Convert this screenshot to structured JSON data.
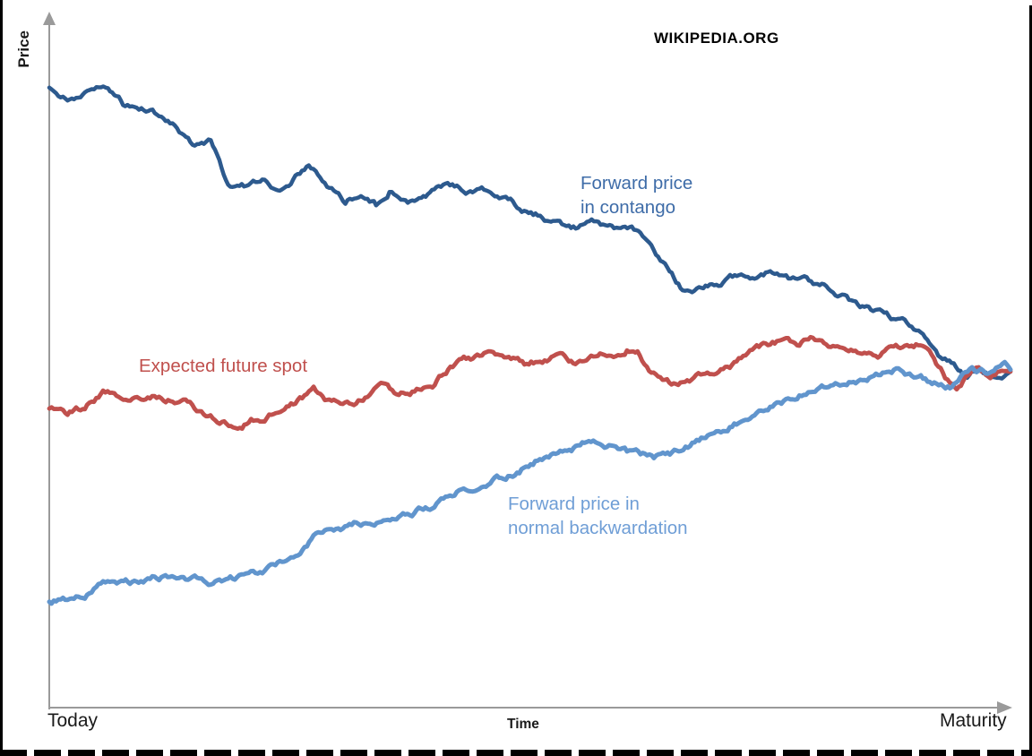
{
  "watermark": "WIKIPEDIA.ORG",
  "labels": {
    "contango": {
      "line1": "Forward price",
      "line2": "in contango"
    },
    "spot": {
      "line1": "Expected future spot"
    },
    "backwardation": {
      "line1": "Forward price in",
      "line2": "normal backwardation"
    }
  },
  "colors": {
    "contango_line": "#2d5a8e",
    "contango_label": "#3e6ca8",
    "spot_line": "#c0504d",
    "backwardation_line": "#6195cd",
    "backwardation_label": "#6f9ed6",
    "axis": "#9a9a9a",
    "text": "#1a1a1a"
  },
  "chart_data": {
    "type": "line",
    "title": "",
    "xlabel": "Time",
    "ylabel": "Price",
    "x_start_label": "Today",
    "x_end_label": "Maturity",
    "xlim": [
      0,
      1
    ],
    "ylim": [
      0,
      100
    ],
    "grid": false,
    "legend": "inline-annotations",
    "note": "Qualitative chart: no numeric ticks; y is a relative price index 0-100, x is fraction of time from Today to Maturity. All three series converge near price 53.6 at maturity.",
    "series": [
      {
        "id": "contango",
        "name": "Forward price in contango",
        "color": "#2d5a8e",
        "points": [
          [
            0,
            98.9
          ],
          [
            0.019,
            96.9
          ],
          [
            0.037,
            97.9
          ],
          [
            0.061,
            99.1
          ],
          [
            0.079,
            96
          ],
          [
            0.103,
            95.4
          ],
          [
            0.121,
            93.6
          ],
          [
            0.14,
            91.4
          ],
          [
            0.149,
            89.6
          ],
          [
            0.168,
            90.3
          ],
          [
            0.186,
            83.6
          ],
          [
            0.205,
            83.1
          ],
          [
            0.224,
            83.9
          ],
          [
            0.242,
            82.6
          ],
          [
            0.27,
            86.9
          ],
          [
            0.289,
            83.1
          ],
          [
            0.308,
            80.7
          ],
          [
            0.322,
            81.7
          ],
          [
            0.34,
            80
          ],
          [
            0.354,
            82.6
          ],
          [
            0.373,
            80
          ],
          [
            0.387,
            81.1
          ],
          [
            0.405,
            83.1
          ],
          [
            0.424,
            82.9
          ],
          [
            0.438,
            82.1
          ],
          [
            0.457,
            82.4
          ],
          [
            0.475,
            81.1
          ],
          [
            0.494,
            79.3
          ],
          [
            0.513,
            78.6
          ],
          [
            0.531,
            76.9
          ],
          [
            0.55,
            76.4
          ],
          [
            0.569,
            77.4
          ],
          [
            0.583,
            76.9
          ],
          [
            0.606,
            76
          ],
          [
            0.624,
            74.3
          ],
          [
            0.643,
            70
          ],
          [
            0.659,
            66.7
          ],
          [
            0.676,
            67.1
          ],
          [
            0.694,
            67.4
          ],
          [
            0.713,
            68.6
          ],
          [
            0.736,
            69
          ],
          [
            0.75,
            69.6
          ],
          [
            0.769,
            68.3
          ],
          [
            0.788,
            67.9
          ],
          [
            0.806,
            67.1
          ],
          [
            0.825,
            65.7
          ],
          [
            0.839,
            64
          ],
          [
            0.857,
            62.9
          ],
          [
            0.871,
            62.1
          ],
          [
            0.89,
            61.1
          ],
          [
            0.909,
            59.7
          ],
          [
            0.927,
            56
          ],
          [
            0.941,
            54.6
          ],
          [
            0.955,
            52.6
          ],
          [
            0.967,
            54
          ],
          [
            0.979,
            53.1
          ],
          [
            0.991,
            52.1
          ],
          [
            1,
            53.6
          ]
        ]
      },
      {
        "id": "expected-spot",
        "name": "Expected future spot",
        "color": "#c0504d",
        "points": [
          [
            0,
            47.4
          ],
          [
            0.019,
            46.9
          ],
          [
            0.037,
            47.9
          ],
          [
            0.056,
            50.4
          ],
          [
            0.07,
            50
          ],
          [
            0.089,
            49.7
          ],
          [
            0.107,
            50
          ],
          [
            0.126,
            49
          ],
          [
            0.144,
            48.3
          ],
          [
            0.163,
            46.4
          ],
          [
            0.182,
            45.4
          ],
          [
            0.196,
            44
          ],
          [
            0.21,
            45.7
          ],
          [
            0.224,
            46.4
          ],
          [
            0.238,
            47.4
          ],
          [
            0.256,
            48.9
          ],
          [
            0.275,
            50.4
          ],
          [
            0.289,
            48.9
          ],
          [
            0.303,
            48.3
          ],
          [
            0.317,
            47.9
          ],
          [
            0.331,
            49.7
          ],
          [
            0.345,
            51.7
          ],
          [
            0.359,
            50
          ],
          [
            0.373,
            50.4
          ],
          [
            0.387,
            51.1
          ],
          [
            0.401,
            51.7
          ],
          [
            0.415,
            54
          ],
          [
            0.429,
            55.3
          ],
          [
            0.443,
            55.7
          ],
          [
            0.457,
            56.6
          ],
          [
            0.471,
            56
          ],
          [
            0.485,
            55.7
          ],
          [
            0.499,
            54.6
          ],
          [
            0.513,
            55.4
          ],
          [
            0.527,
            56
          ],
          [
            0.545,
            55
          ],
          [
            0.559,
            56
          ],
          [
            0.573,
            56.4
          ],
          [
            0.587,
            55.7
          ],
          [
            0.601,
            57.1
          ],
          [
            0.612,
            56.4
          ],
          [
            0.624,
            53.6
          ],
          [
            0.638,
            51.7
          ],
          [
            0.652,
            51.4
          ],
          [
            0.666,
            52.1
          ],
          [
            0.68,
            53.1
          ],
          [
            0.694,
            53.6
          ],
          [
            0.708,
            54
          ],
          [
            0.722,
            55.7
          ],
          [
            0.736,
            57.4
          ],
          [
            0.75,
            58.1
          ],
          [
            0.764,
            58.6
          ],
          [
            0.778,
            58.3
          ],
          [
            0.792,
            59.3
          ],
          [
            0.806,
            58.1
          ],
          [
            0.82,
            57.4
          ],
          [
            0.834,
            57.1
          ],
          [
            0.848,
            56.7
          ],
          [
            0.862,
            56.4
          ],
          [
            0.876,
            57.1
          ],
          [
            0.89,
            57.6
          ],
          [
            0.904,
            57.9
          ],
          [
            0.918,
            56.4
          ],
          [
            0.932,
            52.9
          ],
          [
            0.944,
            51.7
          ],
          [
            0.955,
            53.1
          ],
          [
            0.967,
            54.6
          ],
          [
            0.979,
            52.9
          ],
          [
            0.991,
            54
          ],
          [
            1,
            53.6
          ]
        ]
      },
      {
        "id": "backwardation",
        "name": "Forward price in normal backwardation",
        "color": "#6195cd",
        "points": [
          [
            0,
            16.9
          ],
          [
            0.019,
            17.4
          ],
          [
            0.037,
            18.3
          ],
          [
            0.056,
            20
          ],
          [
            0.075,
            20.3
          ],
          [
            0.093,
            20
          ],
          [
            0.112,
            20.7
          ],
          [
            0.13,
            21
          ],
          [
            0.149,
            20.7
          ],
          [
            0.168,
            20
          ],
          [
            0.186,
            20.3
          ],
          [
            0.205,
            20.7
          ],
          [
            0.224,
            21.9
          ],
          [
            0.242,
            23.1
          ],
          [
            0.261,
            24.6
          ],
          [
            0.275,
            26.9
          ],
          [
            0.289,
            27.6
          ],
          [
            0.303,
            27.9
          ],
          [
            0.317,
            28.9
          ],
          [
            0.336,
            29.7
          ],
          [
            0.35,
            30
          ],
          [
            0.368,
            30.7
          ],
          [
            0.382,
            31.4
          ],
          [
            0.396,
            32.1
          ],
          [
            0.41,
            33.6
          ],
          [
            0.424,
            34.6
          ],
          [
            0.443,
            35
          ],
          [
            0.461,
            36
          ],
          [
            0.475,
            36.9
          ],
          [
            0.489,
            37.9
          ],
          [
            0.508,
            39.7
          ],
          [
            0.522,
            40.3
          ],
          [
            0.541,
            40.7
          ],
          [
            0.559,
            42.1
          ],
          [
            0.573,
            41.9
          ],
          [
            0.587,
            41.4
          ],
          [
            0.601,
            40.7
          ],
          [
            0.615,
            40.3
          ],
          [
            0.629,
            40
          ],
          [
            0.648,
            40.4
          ],
          [
            0.662,
            41.4
          ],
          [
            0.676,
            42.6
          ],
          [
            0.694,
            43.6
          ],
          [
            0.708,
            44.7
          ],
          [
            0.722,
            45.7
          ],
          [
            0.736,
            46.9
          ],
          [
            0.75,
            48.3
          ],
          [
            0.764,
            48.9
          ],
          [
            0.778,
            50
          ],
          [
            0.792,
            51.1
          ],
          [
            0.806,
            51.4
          ],
          [
            0.825,
            52
          ],
          [
            0.839,
            52.4
          ],
          [
            0.853,
            52.9
          ],
          [
            0.867,
            53.3
          ],
          [
            0.881,
            53.9
          ],
          [
            0.895,
            53.1
          ],
          [
            0.909,
            52.4
          ],
          [
            0.923,
            51.7
          ],
          [
            0.937,
            51.4
          ],
          [
            0.948,
            52.6
          ],
          [
            0.96,
            54
          ],
          [
            0.974,
            53.6
          ],
          [
            0.985,
            54.6
          ],
          [
            0.994,
            55
          ],
          [
            1,
            53.9
          ]
        ]
      }
    ]
  }
}
